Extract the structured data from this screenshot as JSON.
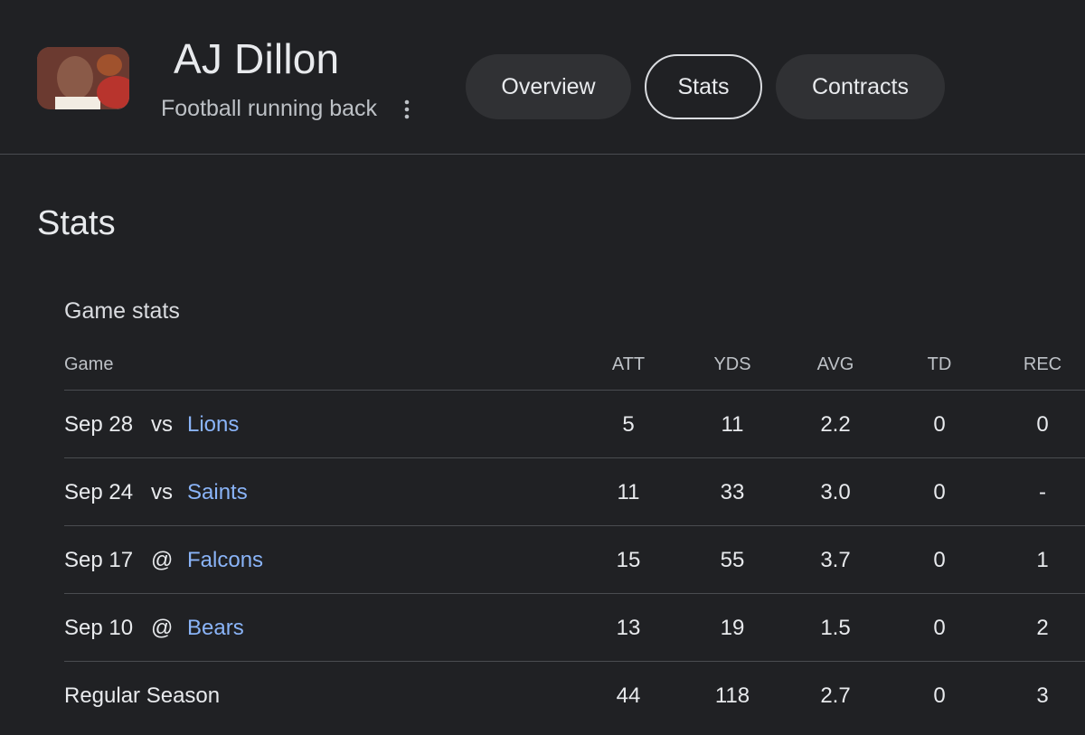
{
  "player": {
    "name": "AJ Dillon",
    "subtitle": "Football running back"
  },
  "tabs": [
    {
      "label": "Overview",
      "active": false
    },
    {
      "label": "Stats",
      "active": true
    },
    {
      "label": "Contracts",
      "active": false
    }
  ],
  "section_title": "Stats",
  "game_stats": {
    "title": "Game stats",
    "columns": [
      "Game",
      "ATT",
      "YDS",
      "AVG",
      "TD",
      "REC"
    ],
    "rows": [
      {
        "date": "Sep 28",
        "loc": "vs",
        "team": "Lions",
        "att": "5",
        "yds": "11",
        "avg": "2.2",
        "td": "0",
        "rec": "0"
      },
      {
        "date": "Sep 24",
        "loc": "vs",
        "team": "Saints",
        "att": "11",
        "yds": "33",
        "avg": "3.0",
        "td": "0",
        "rec": "-"
      },
      {
        "date": "Sep 17",
        "loc": "@",
        "team": "Falcons",
        "att": "15",
        "yds": "55",
        "avg": "3.7",
        "td": "0",
        "rec": "1"
      },
      {
        "date": "Sep 10",
        "loc": "@",
        "team": "Bears",
        "att": "13",
        "yds": "19",
        "avg": "1.5",
        "td": "0",
        "rec": "2"
      }
    ],
    "summary": {
      "label": "Regular Season",
      "att": "44",
      "yds": "118",
      "avg": "2.7",
      "td": "0",
      "rec": "3"
    }
  },
  "colors": {
    "background": "#202124",
    "link": "#8ab4f8",
    "tab_bg": "#303134",
    "divider": "#4a4c50"
  },
  "icons": {
    "more": "more-vert-icon"
  }
}
